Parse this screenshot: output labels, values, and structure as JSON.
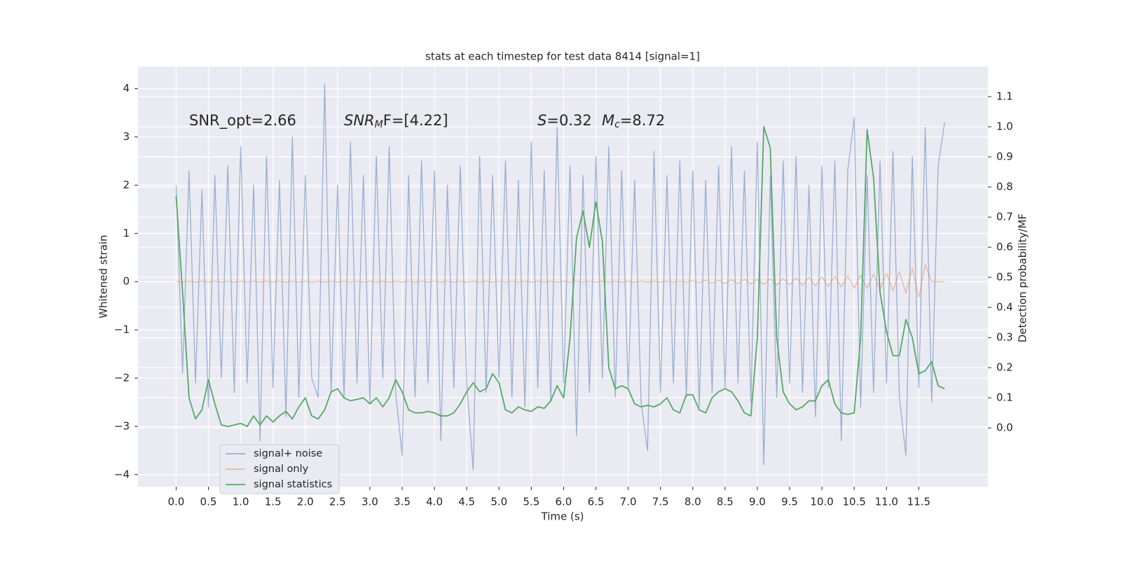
{
  "chart_data": {
    "type": "line",
    "title": "stats at each timestep for test data 8414 [signal=1]",
    "xlabel": "Time (s)",
    "ylabel": "Whitened strain",
    "y2label": "Detection probability/MF",
    "annotations": [
      {
        "parts": [
          "SNR_opt=2.66"
        ]
      },
      {
        "parts": [
          "SNR",
          "M",
          "F=[4.22]"
        ]
      },
      {
        "parts": [
          "S",
          "=0.32"
        ]
      },
      {
        "parts": [
          "M",
          "c",
          "=8.72"
        ]
      }
    ],
    "x": [
      0.0,
      0.1,
      0.2,
      0.3,
      0.4,
      0.5,
      0.6,
      0.7,
      0.8,
      0.9,
      1.0,
      1.1,
      1.2,
      1.3,
      1.4,
      1.5,
      1.6,
      1.7,
      1.8,
      1.9,
      2.0,
      2.1,
      2.2,
      2.3,
      2.4,
      2.5,
      2.6,
      2.7,
      2.8,
      2.9,
      3.0,
      3.1,
      3.2,
      3.3,
      3.4,
      3.5,
      3.6,
      3.7,
      3.8,
      3.9,
      4.0,
      4.1,
      4.2,
      4.3,
      4.4,
      4.5,
      4.6,
      4.7,
      4.8,
      4.9,
      5.0,
      5.1,
      5.2,
      5.3,
      5.4,
      5.5,
      5.6,
      5.7,
      5.8,
      5.9,
      6.0,
      6.1,
      6.2,
      6.3,
      6.4,
      6.5,
      6.6,
      6.7,
      6.8,
      6.9,
      7.0,
      7.1,
      7.2,
      7.3,
      7.4,
      7.5,
      7.6,
      7.7,
      7.8,
      7.9,
      8.0,
      8.1,
      8.2,
      8.3,
      8.4,
      8.5,
      8.6,
      8.7,
      8.8,
      8.9,
      9.0,
      9.1,
      9.2,
      9.3,
      9.4,
      9.5,
      9.6,
      9.7,
      9.8,
      9.9,
      10.0,
      10.1,
      10.2,
      10.3,
      10.4,
      10.5,
      10.6,
      10.7,
      10.8,
      10.9,
      11.0,
      11.1,
      11.2,
      11.3,
      11.4,
      11.5,
      11.6,
      11.7,
      11.8,
      11.9
    ],
    "series": [
      {
        "name": "signal+ noise",
        "color": "#4c72b0",
        "values": [
          2.0,
          -1.9,
          2.3,
          -2.1,
          1.9,
          -2.6,
          2.2,
          -2.0,
          2.4,
          -2.3,
          2.8,
          -2.1,
          2.0,
          -3.3,
          2.6,
          -2.2,
          2.1,
          -2.8,
          3.0,
          -2.4,
          2.2,
          -2.0,
          -2.4,
          4.1,
          -2.3,
          2.0,
          -2.4,
          2.9,
          -2.1,
          2.2,
          -2.5,
          2.6,
          -2.0,
          2.8,
          -2.3,
          -3.6,
          2.2,
          -2.4,
          2.5,
          -2.1,
          2.3,
          -3.3,
          2.0,
          -2.2,
          2.4,
          -2.1,
          -3.9,
          2.6,
          -2.3,
          2.2,
          -2.0,
          2.5,
          -2.4,
          2.1,
          -2.6,
          2.9,
          -2.2,
          2.3,
          -2.5,
          3.2,
          -2.1,
          2.4,
          -3.2,
          2.2,
          -2.3,
          2.6,
          -2.0,
          2.8,
          -2.4,
          2.3,
          -2.2,
          2.1,
          -2.5,
          -3.5,
          2.7,
          -2.3,
          2.2,
          -2.1,
          2.5,
          -2.4,
          2.3,
          -2.6,
          2.1,
          -2.3,
          2.4,
          -2.2,
          2.8,
          -2.1,
          2.3,
          -2.5,
          2.9,
          -3.8,
          2.2,
          -2.4,
          2.5,
          -2.1,
          2.6,
          -2.3,
          2.0,
          -2.8,
          2.4,
          -2.2,
          2.5,
          -3.3,
          2.3,
          3.4,
          -2.6,
          2.2,
          -2.3,
          2.5,
          -2.1,
          2.7,
          -2.4,
          -3.6,
          2.6,
          -2.2,
          3.2,
          -2.5,
          2.4,
          3.3
        ]
      },
      {
        "name": "signal only",
        "color": "#dd8452",
        "values": [
          0.01,
          -0.01,
          0.01,
          -0.01,
          0.01,
          -0.01,
          0.01,
          -0.01,
          0.01,
          -0.01,
          0.01,
          -0.01,
          0.01,
          -0.01,
          0.01,
          -0.01,
          0.01,
          -0.01,
          0.01,
          -0.01,
          0.01,
          -0.01,
          0.01,
          -0.01,
          0.01,
          -0.01,
          0.01,
          -0.01,
          0.01,
          -0.01,
          0.01,
          -0.01,
          0.01,
          -0.01,
          0.01,
          -0.01,
          0.01,
          -0.01,
          0.01,
          -0.01,
          0.01,
          -0.01,
          0.01,
          -0.01,
          0.01,
          -0.01,
          0.01,
          -0.01,
          0.01,
          -0.01,
          0.01,
          -0.01,
          0.01,
          -0.01,
          0.01,
          -0.01,
          0.01,
          -0.01,
          0.01,
          -0.01,
          0.01,
          -0.01,
          0.01,
          -0.01,
          0.01,
          -0.01,
          0.01,
          -0.01,
          0.01,
          -0.01,
          0.01,
          -0.01,
          0.01,
          -0.01,
          0.01,
          -0.01,
          0.01,
          -0.01,
          0.01,
          -0.01,
          0.02,
          -0.02,
          0.03,
          -0.03,
          0.03,
          -0.04,
          0.04,
          -0.04,
          0.05,
          -0.05,
          0.05,
          -0.06,
          0.06,
          -0.07,
          0.07,
          -0.07,
          0.08,
          -0.08,
          0.09,
          -0.09,
          0.1,
          -0.1,
          0.11,
          -0.11,
          0.12,
          -0.13,
          0.13,
          -0.14,
          0.15,
          -0.16,
          0.17,
          -0.19,
          0.21,
          -0.24,
          0.28,
          -0.32,
          0.35,
          0,
          0,
          0
        ]
      },
      {
        "name": "signal statistics",
        "color": "#55a868",
        "axis": "y2",
        "values": [
          0.77,
          0.45,
          0.1,
          0.03,
          0.06,
          0.16,
          0.08,
          0.01,
          0.005,
          0.01,
          0.015,
          0.005,
          0.04,
          0.01,
          0.04,
          0.02,
          0.04,
          0.055,
          0.03,
          0.07,
          0.1,
          0.04,
          0.03,
          0.06,
          0.12,
          0.13,
          0.1,
          0.09,
          0.095,
          0.1,
          0.08,
          0.1,
          0.07,
          0.1,
          0.16,
          0.12,
          0.06,
          0.05,
          0.05,
          0.055,
          0.05,
          0.04,
          0.04,
          0.05,
          0.08,
          0.12,
          0.15,
          0.12,
          0.13,
          0.18,
          0.15,
          0.06,
          0.05,
          0.07,
          0.06,
          0.055,
          0.07,
          0.065,
          0.09,
          0.14,
          0.1,
          0.3,
          0.63,
          0.72,
          0.6,
          0.75,
          0.62,
          0.2,
          0.13,
          0.14,
          0.13,
          0.08,
          0.07,
          0.075,
          0.07,
          0.08,
          0.1,
          0.06,
          0.05,
          0.11,
          0.11,
          0.06,
          0.05,
          0.1,
          0.12,
          0.13,
          0.12,
          0.09,
          0.05,
          0.04,
          0.3,
          1.0,
          0.93,
          0.3,
          0.12,
          0.08,
          0.06,
          0.07,
          0.09,
          0.09,
          0.14,
          0.16,
          0.08,
          0.05,
          0.045,
          0.05,
          0.3,
          0.99,
          0.83,
          0.45,
          0.32,
          0.24,
          0.24,
          0.36,
          0.3,
          0.18,
          0.19,
          0.22,
          0.14,
          0.13
        ]
      }
    ],
    "xlim": [
      -0.59,
      12.57
    ],
    "xticks": [
      {
        "value": 0,
        "label": "0.0"
      },
      0.5,
      {
        "value": 1,
        "label": "1.0"
      },
      1.5,
      {
        "value": 2,
        "label": "2.0"
      },
      2.5,
      {
        "value": 3,
        "label": "3.0"
      },
      3.5,
      {
        "value": 4,
        "label": "4.0"
      },
      4.5,
      {
        "value": 5,
        "label": "5.0"
      },
      5.5,
      {
        "value": 6,
        "label": "6.0"
      },
      6.5,
      {
        "value": 7,
        "label": "7.0"
      },
      7.5,
      {
        "value": 8,
        "label": "8.0"
      },
      8.5,
      {
        "value": 9,
        "label": "9.0"
      },
      9.5,
      {
        "value": 10,
        "label": "10.0"
      },
      10.5,
      {
        "value": 11,
        "label": "11.0"
      },
      11.5
    ],
    "ylim": [
      -4.25,
      4.46
    ],
    "yticks": [
      {
        "value": -4,
        "label": "−4"
      },
      {
        "value": -3,
        "label": "−3"
      },
      {
        "value": -2,
        "label": "−2"
      },
      {
        "value": -1,
        "label": "−1"
      },
      0,
      1,
      2,
      3,
      4
    ],
    "y2lim": [
      -0.195,
      1.2
    ],
    "y2ticks": [
      {
        "value": 0,
        "label": "0.0"
      },
      0.1,
      0.2,
      0.3,
      0.4,
      0.5,
      0.6,
      0.7,
      0.8,
      0.9,
      {
        "value": 1,
        "label": "1.0"
      },
      1.1
    ],
    "grid": true,
    "legend": "lower left"
  }
}
